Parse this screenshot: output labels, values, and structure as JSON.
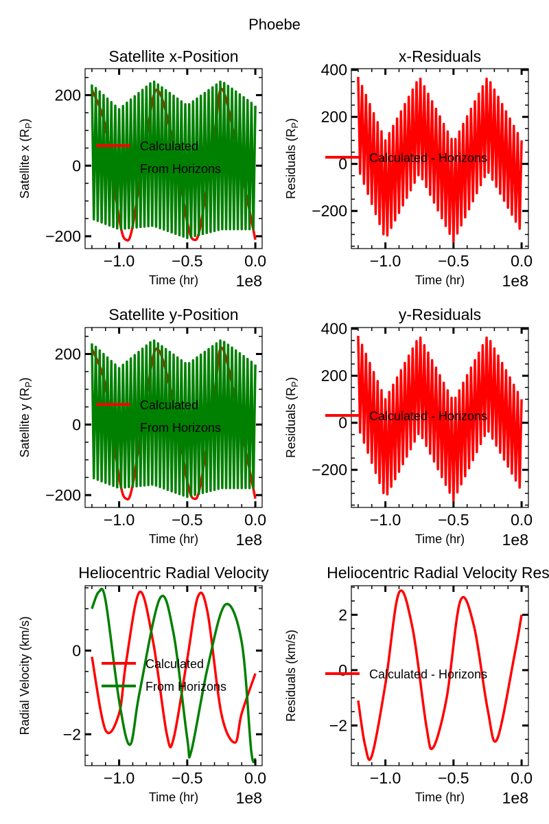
{
  "figure": {
    "title": "Phoebe"
  },
  "colors": {
    "calculated": "#ff0000",
    "horizons": "#008000",
    "residual": "#ff0000",
    "axes": "#000000"
  },
  "chart_data": [
    {
      "id": "x-position",
      "type": "line",
      "title": "Satellite x-Position",
      "xlabel": "Time (hr)",
      "ylabel": "Satellite x (R",
      "ylabel_sub": "P",
      "ylabel_end": ")",
      "x_offset_label": "1e8",
      "xlim": [
        -1.25,
        0.05
      ],
      "ylim": [
        -235,
        275
      ],
      "xticks": [
        -1.0,
        -0.5,
        0.0
      ],
      "xtick_labels": [
        "−1.0",
        "−0.5",
        "0.0"
      ],
      "yticks": [
        -200,
        0,
        200
      ],
      "ytick_labels": [
        "−200",
        "0",
        "200"
      ],
      "legend_position": "center-left",
      "series": [
        {
          "name": "Calculated",
          "color": "#ff0000",
          "x": [
            -1.2,
            -1.1,
            -1.0,
            -0.95,
            -0.9,
            -0.8,
            -0.72,
            -0.6,
            -0.5,
            -0.45,
            -0.4,
            -0.3,
            -0.24,
            -0.1,
            0.0
          ],
          "y": [
            215,
            110,
            -150,
            -210,
            -170,
            80,
            215,
            60,
            -160,
            -210,
            -165,
            90,
            215,
            -20,
            -210
          ]
        },
        {
          "name": "From Horizons",
          "color": "#008000",
          "x": [
            -1.2,
            -1.0,
            -0.75,
            -0.5,
            -0.25,
            0.0
          ],
          "y_upper": [
            230,
            160,
            240,
            170,
            240,
            170
          ],
          "y_lower": [
            -150,
            -180,
            -170,
            -205,
            -180,
            -180
          ],
          "approx_cycles": 42
        }
      ]
    },
    {
      "id": "x-residuals",
      "type": "line",
      "title": "x-Residuals",
      "xlabel": "Time (hr)",
      "ylabel": "Residuals (R",
      "ylabel_sub": "P",
      "ylabel_end": ")",
      "x_offset_label": "1e8",
      "xlim": [
        -1.25,
        0.05
      ],
      "ylim": [
        -360,
        405
      ],
      "xticks": [
        -1.0,
        -0.5,
        0.0
      ],
      "xtick_labels": [
        "−1.0",
        "−0.5",
        "0.0"
      ],
      "yticks": [
        -200,
        0,
        200,
        400
      ],
      "ytick_labels": [
        "−200",
        "0",
        "200",
        "400"
      ],
      "legend_position": "center-left",
      "series": [
        {
          "name": "Calculated - Horizons",
          "color": "#ff0000",
          "x": [
            -1.2,
            -1.0,
            -0.75,
            -0.5,
            -0.25,
            0.0
          ],
          "y_upper": [
            370,
            100,
            370,
            90,
            370,
            100
          ],
          "y_lower": [
            -20,
            -320,
            -40,
            -330,
            -30,
            -290
          ],
          "approx_cycles": 42
        }
      ]
    },
    {
      "id": "y-position",
      "type": "line",
      "title": "Satellite y-Position",
      "xlabel": "Time (hr)",
      "ylabel": "Satellite y (R",
      "ylabel_sub": "P",
      "ylabel_end": ")",
      "x_offset_label": "1e8",
      "xlim": [
        -1.25,
        0.05
      ],
      "ylim": [
        -235,
        275
      ],
      "xticks": [
        -1.0,
        -0.5,
        0.0
      ],
      "xtick_labels": [
        "−1.0",
        "−0.5",
        "0.0"
      ],
      "yticks": [
        -200,
        0,
        200
      ],
      "ytick_labels": [
        "−200",
        "0",
        "200"
      ],
      "legend_position": "center-left",
      "series": [
        {
          "name": "Calculated",
          "color": "#ff0000",
          "x": [
            -1.2,
            -1.1,
            -1.0,
            -0.95,
            -0.9,
            -0.8,
            -0.72,
            -0.6,
            -0.5,
            -0.45,
            -0.4,
            -0.3,
            -0.24,
            -0.1,
            0.0
          ],
          "y": [
            215,
            110,
            -150,
            -210,
            -170,
            80,
            215,
            60,
            -160,
            -210,
            -165,
            90,
            215,
            -20,
            -210
          ]
        },
        {
          "name": "From Horizons",
          "color": "#008000",
          "x": [
            -1.2,
            -1.0,
            -0.75,
            -0.5,
            -0.25,
            0.0
          ],
          "y_upper": [
            230,
            160,
            240,
            170,
            240,
            170
          ],
          "y_lower": [
            -150,
            -180,
            -170,
            -205,
            -180,
            -180
          ],
          "approx_cycles": 42
        }
      ]
    },
    {
      "id": "y-residuals",
      "type": "line",
      "title": "y-Residuals",
      "xlabel": "Time (hr)",
      "ylabel": "Residuals (R",
      "ylabel_sub": "P",
      "ylabel_end": ")",
      "x_offset_label": "1e8",
      "xlim": [
        -1.25,
        0.05
      ],
      "ylim": [
        -360,
        405
      ],
      "xticks": [
        -1.0,
        -0.5,
        0.0
      ],
      "xtick_labels": [
        "−1.0",
        "−0.5",
        "0.0"
      ],
      "yticks": [
        -200,
        0,
        200,
        400
      ],
      "ytick_labels": [
        "−200",
        "0",
        "200",
        "400"
      ],
      "legend_position": "center-left",
      "series": [
        {
          "name": "Calculated - Horizons",
          "color": "#ff0000",
          "x": [
            -1.2,
            -1.0,
            -0.75,
            -0.5,
            -0.25,
            0.0
          ],
          "y_upper": [
            370,
            100,
            370,
            90,
            370,
            100
          ],
          "y_lower": [
            -20,
            -320,
            -40,
            -330,
            -30,
            -290
          ],
          "approx_cycles": 42
        }
      ]
    },
    {
      "id": "radial-velocity",
      "type": "line",
      "title": "Heliocentric Radial Velocity",
      "xlabel": "Time (hr)",
      "ylabel": "Radial Velocity (km/s)",
      "ylabel_sub": "",
      "ylabel_end": "",
      "x_offset_label": "1e8",
      "xlim": [
        -1.25,
        0.05
      ],
      "ylim": [
        -2.75,
        1.55
      ],
      "xticks": [
        -1.0,
        -0.5,
        0.0
      ],
      "xtick_labels": [
        "−1.0",
        "−0.5",
        "0.0"
      ],
      "yticks": [
        -2,
        0
      ],
      "ytick_labels": [
        "−2",
        "0"
      ],
      "legend_position": "center-left",
      "series": [
        {
          "name": "Calculated",
          "color": "#ff0000",
          "x": [
            -1.2,
            -1.1,
            -1.0,
            -0.95,
            -0.85,
            -0.75,
            -0.65,
            -0.6,
            -0.5,
            -0.42,
            -0.35,
            -0.25,
            -0.15,
            -0.1,
            0.0
          ],
          "y": [
            -0.15,
            -1.9,
            -1.5,
            -0.3,
            1.4,
            0.2,
            -2.0,
            -2.1,
            -0.2,
            1.3,
            0.9,
            -1.5,
            -2.2,
            -1.5,
            -0.55
          ]
        },
        {
          "name": "From Horizons",
          "color": "#008000",
          "x": [
            -1.2,
            -1.15,
            -1.1,
            -1.0,
            -0.92,
            -0.85,
            -0.7,
            -0.6,
            -0.5,
            -0.47,
            -0.35,
            -0.22,
            -0.1,
            -0.03,
            0.0
          ],
          "y": [
            1.0,
            1.4,
            1.2,
            -1.2,
            -2.25,
            -1.0,
            1.25,
            0.4,
            -2.1,
            -2.4,
            -0.4,
            1.1,
            0.2,
            -2.4,
            -2.6
          ]
        }
      ]
    },
    {
      "id": "velocity-residuals",
      "type": "line",
      "title": "Heliocentric Radial Velocity Resi",
      "xlabel": "Time (hr)",
      "ylabel": "Residuals (km/s)",
      "ylabel_sub": "",
      "ylabel_end": "",
      "x_offset_label": "1e8",
      "xlim": [
        -1.25,
        0.05
      ],
      "ylim": [
        -3.45,
        3.05
      ],
      "xticks": [
        -1.0,
        -0.5,
        0.0
      ],
      "xtick_labels": [
        "−1.0",
        "−0.5",
        "0.0"
      ],
      "yticks": [
        -2,
        0,
        2
      ],
      "ytick_labels": [
        "−2",
        "0",
        "2"
      ],
      "legend_position": "center-left",
      "series": [
        {
          "name": "Calculated - Horizons",
          "color": "#ff0000",
          "x": [
            -1.2,
            -1.15,
            -1.1,
            -1.0,
            -0.9,
            -0.8,
            -0.7,
            -0.65,
            -0.55,
            -0.45,
            -0.35,
            -0.25,
            -0.18,
            -0.05,
            0.0
          ],
          "y": [
            -1.1,
            -2.7,
            -3.1,
            -0.5,
            2.8,
            1.5,
            -2.0,
            -2.8,
            -1.0,
            2.5,
            1.6,
            -1.4,
            -2.5,
            0.6,
            2.0
          ]
        }
      ]
    }
  ]
}
